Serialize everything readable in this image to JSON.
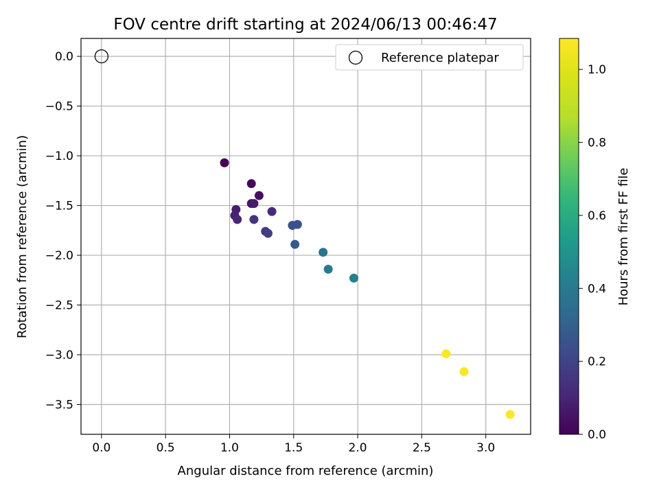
{
  "chart_data": {
    "type": "scatter",
    "title": "FOV centre drift starting at 2024/06/13 00:46:47",
    "xlabel": "Angular distance from reference (arcmin)",
    "ylabel": "Rotation from reference (arcmin)",
    "xlim": [
      -0.16,
      3.35
    ],
    "ylim": [
      -3.8,
      0.18
    ],
    "xticks": [
      0.0,
      0.5,
      1.0,
      1.5,
      2.0,
      2.5,
      3.0
    ],
    "yticks": [
      0.0,
      -0.5,
      -1.0,
      -1.5,
      -2.0,
      -2.5,
      -3.0,
      -3.5
    ],
    "xtick_labels": [
      "0.0",
      "0.5",
      "1.0",
      "1.5",
      "2.0",
      "2.5",
      "3.0"
    ],
    "ytick_labels": [
      "0.0",
      "−0.5",
      "−1.0",
      "−1.5",
      "−2.0",
      "−2.5",
      "−3.0",
      "−3.5"
    ],
    "grid": true,
    "legend": {
      "position": "top-right",
      "entries": [
        "Reference platepar"
      ]
    },
    "reference": {
      "x": 0.0,
      "y": 0.0,
      "marker": "open-circle"
    },
    "colorbar": {
      "label": "Hours from first FF file",
      "range": [
        0.0,
        1.085
      ],
      "ticks": [
        0.0,
        0.2,
        0.4,
        0.6,
        0.8,
        1.0
      ],
      "tick_labels": [
        "0.0",
        "0.2",
        "0.4",
        "0.6",
        "0.8",
        "1.0"
      ],
      "colormap": "viridis"
    },
    "points": [
      {
        "x": 0.96,
        "y": -1.07,
        "hours": 0.0
      },
      {
        "x": 1.17,
        "y": -1.28,
        "hours": 0.02
      },
      {
        "x": 1.23,
        "y": -1.4,
        "hours": 0.04
      },
      {
        "x": 1.17,
        "y": -1.48,
        "hours": 0.06
      },
      {
        "x": 1.19,
        "y": -1.48,
        "hours": 0.07
      },
      {
        "x": 1.05,
        "y": -1.54,
        "hours": 0.08
      },
      {
        "x": 1.04,
        "y": -1.6,
        "hours": 0.09
      },
      {
        "x": 1.06,
        "y": -1.64,
        "hours": 0.1
      },
      {
        "x": 1.33,
        "y": -1.56,
        "hours": 0.12
      },
      {
        "x": 1.19,
        "y": -1.64,
        "hours": 0.15
      },
      {
        "x": 1.28,
        "y": -1.76,
        "hours": 0.17
      },
      {
        "x": 1.3,
        "y": -1.78,
        "hours": 0.18
      },
      {
        "x": 1.49,
        "y": -1.7,
        "hours": 0.24
      },
      {
        "x": 1.53,
        "y": -1.69,
        "hours": 0.25
      },
      {
        "x": 1.51,
        "y": -1.89,
        "hours": 0.27
      },
      {
        "x": 1.73,
        "y": -1.97,
        "hours": 0.37
      },
      {
        "x": 1.77,
        "y": -2.14,
        "hours": 0.4
      },
      {
        "x": 1.97,
        "y": -2.23,
        "hours": 0.43
      },
      {
        "x": 2.69,
        "y": -2.99,
        "hours": 1.085
      },
      {
        "x": 2.83,
        "y": -3.17,
        "hours": 1.085
      },
      {
        "x": 3.19,
        "y": -3.6,
        "hours": 1.085
      }
    ]
  }
}
